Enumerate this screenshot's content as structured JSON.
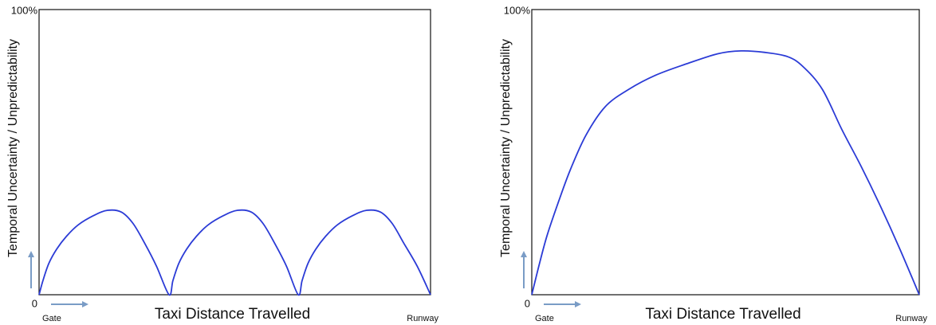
{
  "chart_data": [
    {
      "type": "line",
      "x_label": "Taxi Distance Travelled",
      "y_label": "Temporal Uncertainty / Unpredictability",
      "x": [
        0,
        1,
        2.5,
        4.5,
        7,
        10,
        14,
        17.5,
        21,
        24,
        27,
        30,
        33.2,
        34.2,
        35.7,
        37.7,
        40.2,
        43.2,
        47.2,
        50.7,
        54.2,
        57.2,
        60.2,
        63.2,
        66.2,
        67.2,
        68.7,
        70.7,
        73.2,
        76.2,
        80.2,
        83.7,
        87.2,
        90.2,
        93.2,
        96.6,
        100
      ],
      "series": [
        {
          "color": "#2b3bd6",
          "values": [
            0,
            5,
            11,
            16,
            20.5,
            24.5,
            27.8,
            29.6,
            29,
            25,
            18,
            10,
            0,
            5,
            11,
            16,
            20.5,
            24.5,
            27.8,
            29.6,
            29,
            25,
            18,
            10,
            0,
            5,
            11,
            16,
            20.5,
            24.5,
            27.8,
            29.6,
            29,
            25,
            18,
            10,
            0
          ]
        }
      ],
      "xlim": [
        0,
        100
      ],
      "ylim": [
        0,
        100
      ],
      "xticks": [
        {
          "value": 0,
          "label": "Gate"
        },
        {
          "value": 100,
          "label": "Runway"
        }
      ],
      "yticks": [
        0,
        {
          "value": 100,
          "label": "100%"
        }
      ]
    },
    {
      "type": "line",
      "x_label": "Taxi Distance Travelled",
      "y_label": "Temporal Uncertainty / Unpredictability",
      "x": [
        0,
        2,
        4,
        7,
        10,
        14,
        19,
        25,
        32,
        40,
        48,
        54,
        60,
        66,
        70,
        75,
        80,
        85,
        90,
        95,
        100
      ],
      "series": [
        {
          "color": "#2b3bd6",
          "values": [
            0,
            11,
            21,
            33,
            44,
            56,
            66,
            72,
            77,
            81,
            84.5,
            85.5,
            85,
            83.5,
            80,
            72,
            58,
            45,
            31,
            16,
            0
          ]
        }
      ],
      "xlim": [
        0,
        100
      ],
      "ylim": [
        0,
        100
      ],
      "xticks": [
        {
          "value": 0,
          "label": "Gate"
        },
        {
          "value": 100,
          "label": "Runway"
        }
      ],
      "yticks": [
        0,
        {
          "value": 100,
          "label": "100%"
        }
      ]
    }
  ]
}
